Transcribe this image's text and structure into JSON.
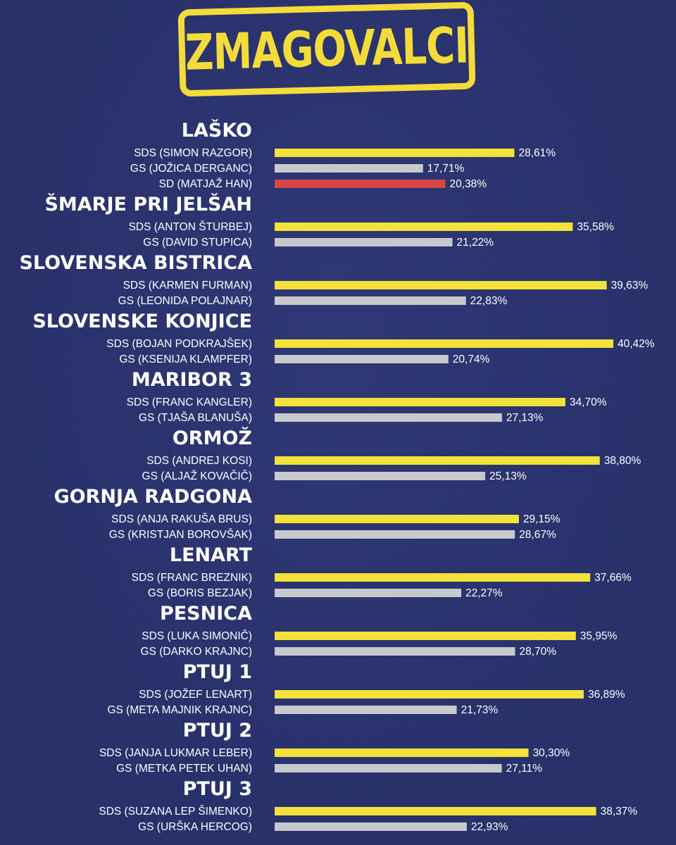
{
  "header": {
    "title": "ZMAGOVALCI"
  },
  "colors": {
    "background": "#27306a",
    "sds": "#f3e23a",
    "gs": "#c8c9cc",
    "sd": "#d94646",
    "stamp": "#f3dc3a",
    "text": "#ffffff"
  },
  "chart_data": {
    "type": "bar",
    "orientation": "horizontal",
    "xlim": [
      0,
      50
    ],
    "unit": "%",
    "groups": [
      {
        "district": "LAŠKO",
        "entries": [
          {
            "label": "SDS (SIMON RAZGOR)",
            "party": "sds",
            "value": 28.61,
            "display": "28,61%"
          },
          {
            "label": "GS (JOŽICA DERGANC)",
            "party": "gs",
            "value": 17.71,
            "display": "17,71%"
          },
          {
            "label": "SD (MATJAŽ HAN)",
            "party": "sd",
            "value": 20.38,
            "display": "20,38%"
          }
        ]
      },
      {
        "district": "ŠMARJE PRI JELŠAH",
        "entries": [
          {
            "label": "SDS (ANTON ŠTURBEJ)",
            "party": "sds",
            "value": 35.58,
            "display": "35,58%"
          },
          {
            "label": "GS (DAVID STUPICA)",
            "party": "gs",
            "value": 21.22,
            "display": "21,22%"
          }
        ]
      },
      {
        "district": "SLOVENSKA BISTRICA",
        "entries": [
          {
            "label": "SDS (KARMEN FURMAN)",
            "party": "sds",
            "value": 39.63,
            "display": "39,63%"
          },
          {
            "label": "GS (LEONIDA POLAJNAR)",
            "party": "gs",
            "value": 22.83,
            "display": "22,83%"
          }
        ]
      },
      {
        "district": "SLOVENSKE KONJICE",
        "entries": [
          {
            "label": "SDS (BOJAN PODKRAJŠEK)",
            "party": "sds",
            "value": 40.42,
            "display": "40,42%"
          },
          {
            "label": "GS (KSENIJA KLAMPFER)",
            "party": "gs",
            "value": 20.74,
            "display": "20,74%"
          }
        ]
      },
      {
        "district": "MARIBOR 3",
        "entries": [
          {
            "label": "SDS (FRANC KANGLER)",
            "party": "sds",
            "value": 34.7,
            "display": "34,70%"
          },
          {
            "label": "GS (TJAŠA BLANUŠA)",
            "party": "gs",
            "value": 27.13,
            "display": "27,13%"
          }
        ]
      },
      {
        "district": "ORMOŽ",
        "entries": [
          {
            "label": "SDS (ANDREJ KOSI)",
            "party": "sds",
            "value": 38.8,
            "display": "38,80%"
          },
          {
            "label": "GS (ALJAŽ KOVAČIČ)",
            "party": "gs",
            "value": 25.13,
            "display": "25,13%"
          }
        ]
      },
      {
        "district": "GORNJA RADGONA",
        "entries": [
          {
            "label": "SDS (ANJA RAKUŠA BRUS)",
            "party": "sds",
            "value": 29.15,
            "display": "29,15%"
          },
          {
            "label": "GS (KRISTJAN BOROVŠAK)",
            "party": "gs",
            "value": 28.67,
            "display": "28,67%"
          }
        ]
      },
      {
        "district": "LENART",
        "entries": [
          {
            "label": "SDS (FRANC BREZNIK)",
            "party": "sds",
            "value": 37.66,
            "display": "37,66%"
          },
          {
            "label": "GS (BORIS BEZJAK)",
            "party": "gs",
            "value": 22.27,
            "display": "22,27%"
          }
        ]
      },
      {
        "district": "PESNICA",
        "entries": [
          {
            "label": "SDS (LUKA SIMONIČ)",
            "party": "sds",
            "value": 35.95,
            "display": "35,95%"
          },
          {
            "label": "GS (DARKO KRAJNC)",
            "party": "gs",
            "value": 28.7,
            "display": "28,70%"
          }
        ]
      },
      {
        "district": "PTUJ 1",
        "entries": [
          {
            "label": "SDS (JOŽEF LENART)",
            "party": "sds",
            "value": 36.89,
            "display": "36,89%"
          },
          {
            "label": "GS (META MAJNIK KRAJNC)",
            "party": "gs",
            "value": 21.73,
            "display": "21,73%"
          }
        ]
      },
      {
        "district": "PTUJ 2",
        "entries": [
          {
            "label": "SDS (JANJA LUKMAR LEBER)",
            "party": "sds",
            "value": 30.3,
            "display": "30,30%"
          },
          {
            "label": "GS (METKA PETEK UHAN)",
            "party": "gs",
            "value": 27.11,
            "display": "27,11%"
          }
        ]
      },
      {
        "district": "PTUJ 3",
        "entries": [
          {
            "label": "SDS (SUZANA LEP ŠIMENKO)",
            "party": "sds",
            "value": 38.37,
            "display": "38,37%"
          },
          {
            "label": "GS (URŠKA HERCOG)",
            "party": "gs",
            "value": 22.93,
            "display": "22,93%"
          }
        ]
      }
    ]
  }
}
